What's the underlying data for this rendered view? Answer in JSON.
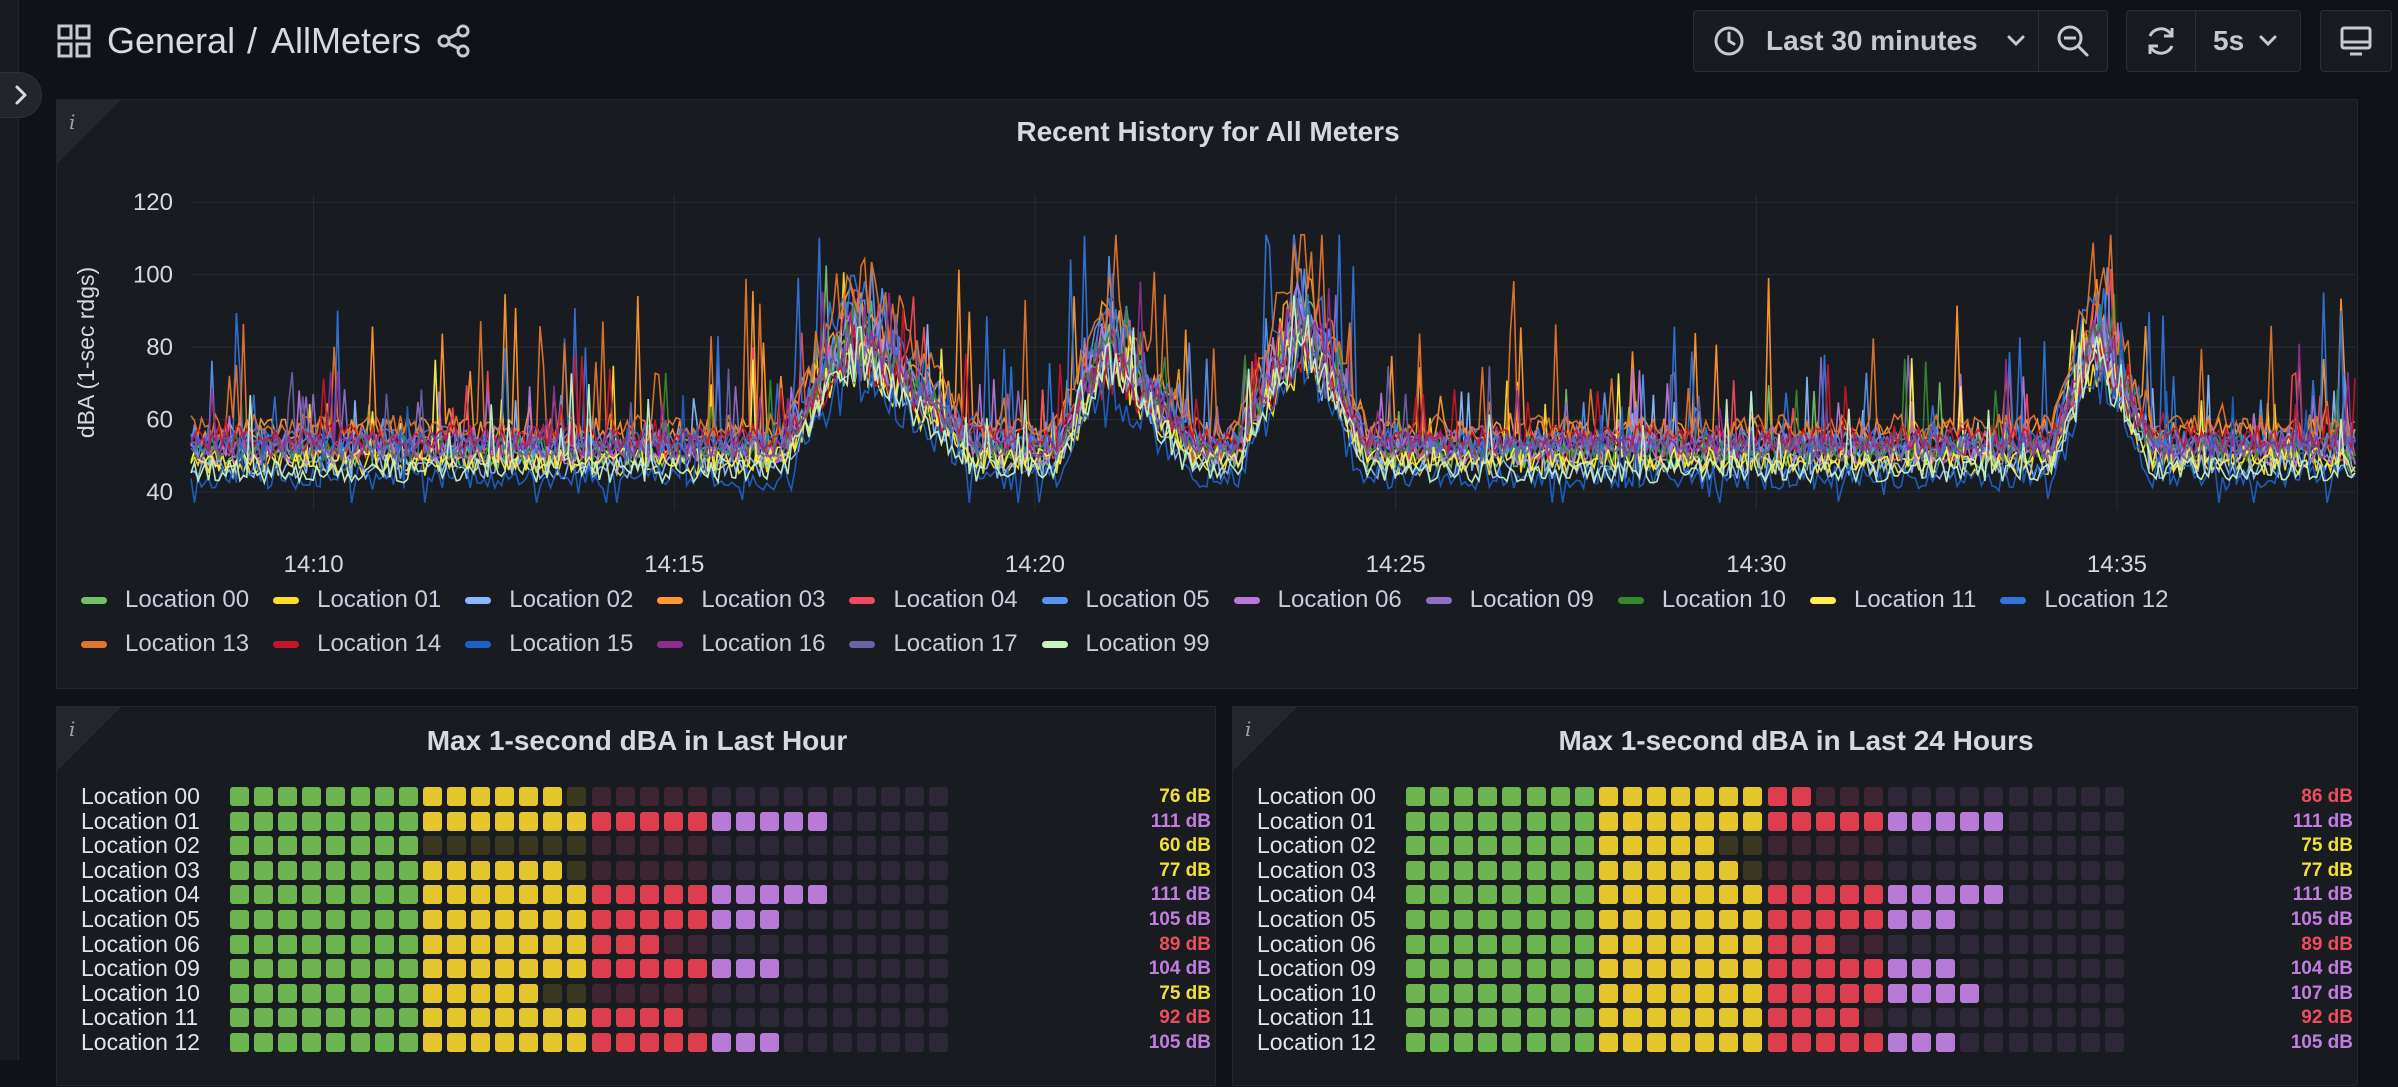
{
  "breadcrumb": {
    "folder": "General",
    "separator": "/",
    "dashboard": "AllMeters"
  },
  "toolbar": {
    "time_range": "Last 30 minutes",
    "refresh_interval": "5s"
  },
  "history_panel": {
    "title": "Recent History for All Meters",
    "info": "i",
    "chart_data": {
      "type": "line",
      "title": "Recent History for All Meters",
      "ylabel": "dBA (1-sec rdgs)",
      "xlabel": "",
      "ylim": [
        35,
        122
      ],
      "yticks": [
        "120",
        "100",
        "80",
        "60",
        "40"
      ],
      "yticks_values": [
        120,
        100,
        80,
        60,
        40
      ],
      "xticks": [
        "14:10",
        "14:15",
        "14:20",
        "14:25",
        "14:30",
        "14:35"
      ],
      "xticks_minutes": [
        10,
        15,
        20,
        25,
        30,
        35
      ],
      "xlim_minutes": [
        8.3,
        38.3
      ],
      "grid": true,
      "legend_placement": "bottom",
      "baseline_dba": 50,
      "events": [
        {
          "start": 16.5,
          "peak": 17.5,
          "end": 19.2,
          "peak_dba": 90
        },
        {
          "start": 20.3,
          "peak": 21.0,
          "end": 22.2,
          "peak_dba": 85
        },
        {
          "start": 22.8,
          "peak": 23.7,
          "end": 24.6,
          "peak_dba": 95
        },
        {
          "start": 34.1,
          "peak": 34.7,
          "end": 35.5,
          "peak_dba": 88
        }
      ],
      "series": [
        {
          "name": "Location 00",
          "color": "#73bf69",
          "base": 50
        },
        {
          "name": "Location 01",
          "color": "#fade2a",
          "base": 48
        },
        {
          "name": "Location 02",
          "color": "#8ab8ff",
          "base": 47
        },
        {
          "name": "Location 03",
          "color": "#ff9830",
          "base": 57
        },
        {
          "name": "Location 04",
          "color": "#f2495c",
          "base": 52
        },
        {
          "name": "Location 05",
          "color": "#5794f2",
          "base": 53
        },
        {
          "name": "Location 06",
          "color": "#b877d9",
          "base": 51
        },
        {
          "name": "Location 09",
          "color": "#8f6dc8",
          "base": 55
        },
        {
          "name": "Location 10",
          "color": "#37872d",
          "base": 52
        },
        {
          "name": "Location 11",
          "color": "#ffee52",
          "base": 49
        },
        {
          "name": "Location 12",
          "color": "#3274d9",
          "base": 54
        },
        {
          "name": "Location 13",
          "color": "#e0752d",
          "base": 58
        },
        {
          "name": "Location 14",
          "color": "#c4162a",
          "base": 55
        },
        {
          "name": "Location 15",
          "color": "#1f60c4",
          "base": 44
        },
        {
          "name": "Location 16",
          "color": "#8e2d8f",
          "base": 53
        },
        {
          "name": "Location 17",
          "color": "#6a63a7",
          "base": 52
        },
        {
          "name": "Location 99",
          "color": "#c8f2c2",
          "base": 46
        }
      ]
    }
  },
  "bar_gauge_hour": {
    "title": "Max 1-second dBA in Last Hour",
    "info": "i",
    "rows": [
      {
        "label": "Location 00",
        "value": "76 dB",
        "num": 76
      },
      {
        "label": "Location 01",
        "value": "111 dB",
        "num": 111
      },
      {
        "label": "Location 02",
        "value": "60 dB",
        "num": 60
      },
      {
        "label": "Location 03",
        "value": "77 dB",
        "num": 77
      },
      {
        "label": "Location 04",
        "value": "111 dB",
        "num": 111
      },
      {
        "label": "Location 05",
        "value": "105 dB",
        "num": 105
      },
      {
        "label": "Location 06",
        "value": "89 dB",
        "num": 89
      },
      {
        "label": "Location 09",
        "value": "104 dB",
        "num": 104
      },
      {
        "label": "Location 10",
        "value": "75 dB",
        "num": 75
      },
      {
        "label": "Location 11",
        "value": "92 dB",
        "num": 92
      },
      {
        "label": "Location 12",
        "value": "105 dB",
        "num": 105
      }
    ]
  },
  "bar_gauge_day": {
    "title": "Max 1-second dBA in Last 24 Hours",
    "info": "i",
    "rows": [
      {
        "label": "Location 00",
        "value": "86 dB",
        "num": 86
      },
      {
        "label": "Location 01",
        "value": "111 dB",
        "num": 111
      },
      {
        "label": "Location 02",
        "value": "75 dB",
        "num": 75
      },
      {
        "label": "Location 03",
        "value": "77 dB",
        "num": 77
      },
      {
        "label": "Location 04",
        "value": "111 dB",
        "num": 111
      },
      {
        "label": "Location 05",
        "value": "105 dB",
        "num": 105
      },
      {
        "label": "Location 06",
        "value": "89 dB",
        "num": 89
      },
      {
        "label": "Location 09",
        "value": "104 dB",
        "num": 104
      },
      {
        "label": "Location 10",
        "value": "107 dB",
        "num": 107
      },
      {
        "label": "Location 11",
        "value": "92 dB",
        "num": 92
      },
      {
        "label": "Location 12",
        "value": "105 dB",
        "num": 105
      }
    ]
  },
  "gauge_scale": {
    "min_dba": 35,
    "max_dba": 125,
    "cells": 30,
    "thresholds": [
      {
        "upto": 60,
        "color": "#6cb54f",
        "dim": "#2f3a2a"
      },
      {
        "upto": 80,
        "color": "#e5c72d",
        "dim": "#3b3822"
      },
      {
        "upto": 95,
        "color": "#de3d4e",
        "dim": "#3d2430"
      },
      {
        "upto": 125,
        "color": "#b77ad6",
        "dim": "#2e2737"
      }
    ],
    "value_colors": {
      "yellow": "#f2e03a",
      "red": "#ef4e5c",
      "purple": "#c27de0"
    }
  }
}
